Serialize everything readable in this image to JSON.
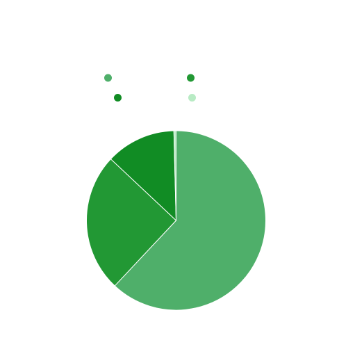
{
  "chart_data": {
    "type": "pie",
    "title": "",
    "slices": [
      {
        "name": "",
        "value": 62.0,
        "color": "#4faf6a"
      },
      {
        "name": "",
        "value": 25.0,
        "color": "#229834"
      },
      {
        "name": "",
        "value": 12.6,
        "color": "#118c24"
      },
      {
        "name": "",
        "value": 0.4,
        "color": "#b8ebc4"
      }
    ],
    "start_angle_deg": 0,
    "direction": "clockwise",
    "legend": {
      "position": "top",
      "columns": 2
    }
  }
}
